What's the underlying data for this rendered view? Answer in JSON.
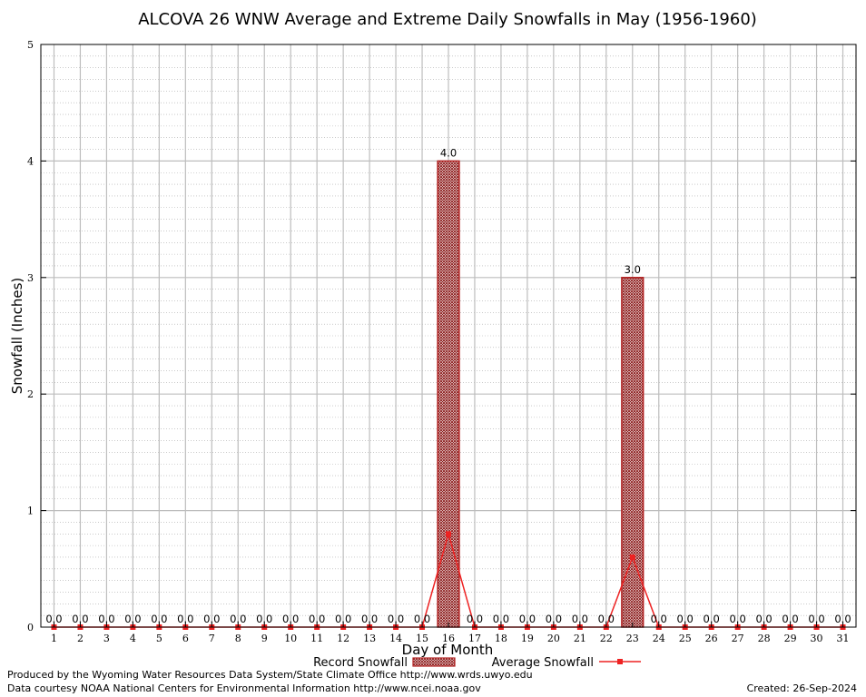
{
  "chart_data": {
    "type": "bar",
    "title": "ALCOVA 26 WNW Average and Extreme Daily Snowfalls in May (1956-1960)",
    "xlabel": "Day of Month",
    "ylabel": "Snowfall (Inches)",
    "ylim": [
      0,
      5
    ],
    "yticks": [
      "0",
      "1",
      "2",
      "3",
      "4",
      "5"
    ],
    "grid": true,
    "categories": [
      "1",
      "2",
      "3",
      "4",
      "5",
      "6",
      "7",
      "8",
      "9",
      "10",
      "11",
      "12",
      "13",
      "14",
      "15",
      "16",
      "17",
      "18",
      "19",
      "20",
      "21",
      "22",
      "23",
      "24",
      "25",
      "26",
      "27",
      "28",
      "29",
      "30",
      "31"
    ],
    "series": [
      {
        "name": "Record Snowfall",
        "kind": "bar",
        "color": "#b22222",
        "values": [
          0,
          0,
          0,
          0,
          0,
          0,
          0,
          0,
          0,
          0,
          0,
          0,
          0,
          0,
          0,
          4.0,
          0,
          0,
          0,
          0,
          0,
          0,
          3.0,
          0,
          0,
          0,
          0,
          0,
          0,
          0,
          0
        ],
        "labels": [
          "0.0",
          "0.0",
          "0.0",
          "0.0",
          "0.0",
          "0.0",
          "0.0",
          "0.0",
          "0.0",
          "0.0",
          "0.0",
          "0.0",
          "0.0",
          "0.0",
          "0.0",
          "4.0",
          "0.0",
          "0.0",
          "0.0",
          "0.0",
          "0.0",
          "0.0",
          "3.0",
          "0.0",
          "0.0",
          "0.0",
          "0.0",
          "0.0",
          "0.0",
          "0.0",
          "0.0"
        ]
      },
      {
        "name": "Average Snowfall",
        "kind": "line",
        "color": "#ee2222",
        "values": [
          0,
          0,
          0,
          0,
          0,
          0,
          0,
          0,
          0,
          0,
          0,
          0,
          0,
          0,
          0,
          0.8,
          0,
          0,
          0,
          0,
          0,
          0,
          0.6,
          0,
          0,
          0,
          0,
          0,
          0,
          0,
          0
        ]
      }
    ],
    "legend_position": "bottom"
  },
  "footer": {
    "producer": "Produced by the Wyoming Water Resources Data System/State Climate Office http://www.wrds.uwyo.edu",
    "courtesy": "Data courtesy NOAA National Centers for Environmental Information http://www.ncei.noaa.gov",
    "created": "Created:  26-Sep-2024"
  }
}
